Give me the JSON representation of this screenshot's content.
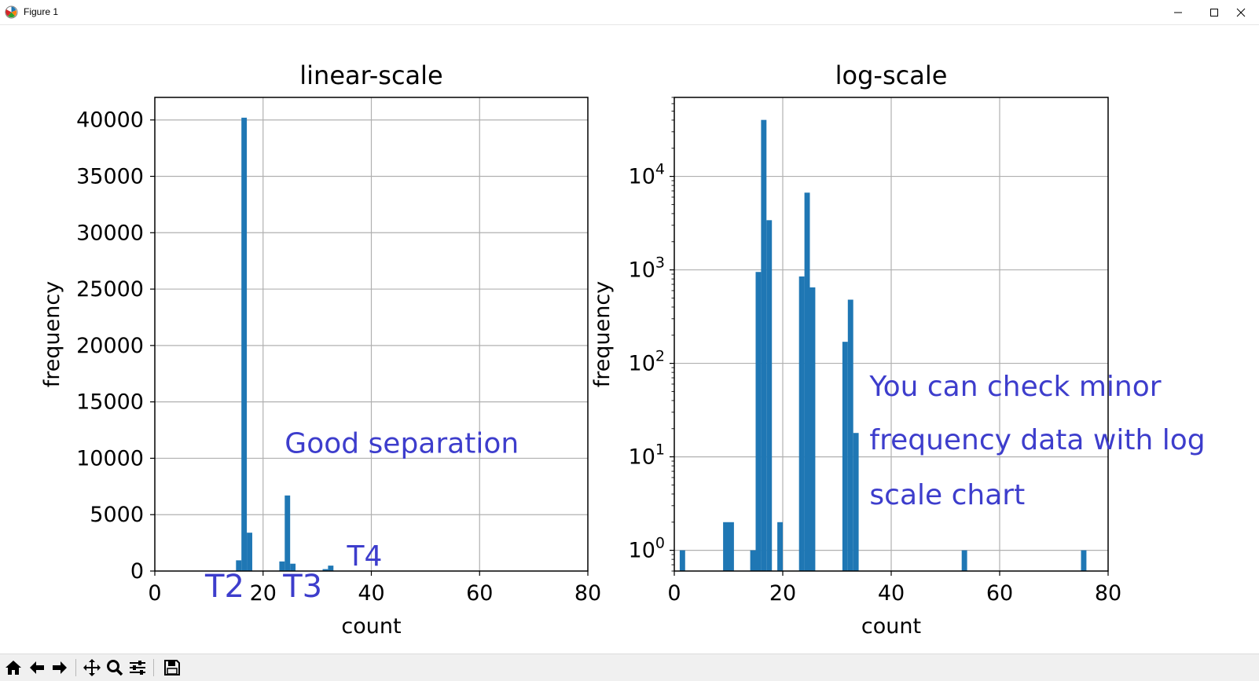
{
  "window": {
    "title": "Figure 1"
  },
  "toolbar": {
    "tools": [
      {
        "name": "home-icon"
      },
      {
        "name": "back-icon"
      },
      {
        "name": "forward-icon"
      },
      {
        "name": "pan-icon"
      },
      {
        "name": "zoom-icon"
      },
      {
        "name": "configure-subplots-icon"
      },
      {
        "name": "save-icon"
      }
    ]
  },
  "colors": {
    "bar": "#1f77b4",
    "annotation": "#3d3dcc",
    "grid": "#b0b0b0"
  },
  "chart_data": [
    {
      "type": "bar",
      "title": "linear-scale",
      "xlabel": "count",
      "ylabel": "frequency",
      "xscale": "linear",
      "yscale": "linear",
      "xlim": [
        0,
        80
      ],
      "ylim": [
        0,
        42000
      ],
      "xticks": [
        0,
        20,
        40,
        60,
        80
      ],
      "yticks": [
        0,
        5000,
        10000,
        15000,
        20000,
        25000,
        30000,
        35000,
        40000
      ],
      "grid": true,
      "bin_width": 1,
      "bins": [
        {
          "x": 1,
          "y": 1
        },
        {
          "x": 9,
          "y": 2
        },
        {
          "x": 10,
          "y": 2
        },
        {
          "x": 14,
          "y": 1
        },
        {
          "x": 15,
          "y": 950
        },
        {
          "x": 16,
          "y": 40200
        },
        {
          "x": 17,
          "y": 3400
        },
        {
          "x": 19,
          "y": 2
        },
        {
          "x": 23,
          "y": 850
        },
        {
          "x": 24,
          "y": 6700
        },
        {
          "x": 25,
          "y": 650
        },
        {
          "x": 31,
          "y": 170
        },
        {
          "x": 32,
          "y": 480
        },
        {
          "x": 33,
          "y": 18
        },
        {
          "x": 53,
          "y": 1
        },
        {
          "x": 75,
          "y": 1
        }
      ],
      "annotations": [
        {
          "text": "Good separation",
          "x": 24,
          "y": 10500,
          "size": "medium"
        },
        {
          "text": "T2",
          "x": 9.3,
          "y": -2300,
          "size": "large"
        },
        {
          "text": "T3",
          "x": 23.7,
          "y": -2300,
          "size": "large"
        },
        {
          "text": "T4",
          "x": 35.5,
          "y": 500,
          "size": "medium"
        }
      ]
    },
    {
      "type": "bar",
      "title": "log-scale",
      "xlabel": "count",
      "ylabel": "frequency",
      "xscale": "linear",
      "yscale": "log",
      "xlim": [
        0,
        80
      ],
      "ylim": [
        0.6,
        70000
      ],
      "xticks": [
        0,
        20,
        40,
        60,
        80
      ],
      "yticks": [
        1,
        10,
        100,
        1000,
        10000
      ],
      "ytick_exponents": [
        "0",
        "1",
        "2",
        "3",
        "4"
      ],
      "ytick_base": "10",
      "grid": true,
      "bin_width": 1,
      "bins": [
        {
          "x": 1,
          "y": 1
        },
        {
          "x": 9,
          "y": 2
        },
        {
          "x": 10,
          "y": 2
        },
        {
          "x": 14,
          "y": 1
        },
        {
          "x": 15,
          "y": 950
        },
        {
          "x": 16,
          "y": 40200
        },
        {
          "x": 17,
          "y": 3400
        },
        {
          "x": 19,
          "y": 2
        },
        {
          "x": 23,
          "y": 850
        },
        {
          "x": 24,
          "y": 6700
        },
        {
          "x": 25,
          "y": 650
        },
        {
          "x": 31,
          "y": 170
        },
        {
          "x": 32,
          "y": 480
        },
        {
          "x": 33,
          "y": 18
        },
        {
          "x": 53,
          "y": 1
        },
        {
          "x": 75,
          "y": 1
        }
      ],
      "annotations": [
        {
          "text": "You can check minor",
          "x": 36,
          "y": 45,
          "size": "medium"
        },
        {
          "text": "frequency data with log",
          "x": 36,
          "y": 12,
          "size": "medium"
        },
        {
          "text": "scale chart",
          "x": 36,
          "y": 3.1,
          "size": "medium"
        }
      ]
    }
  ]
}
